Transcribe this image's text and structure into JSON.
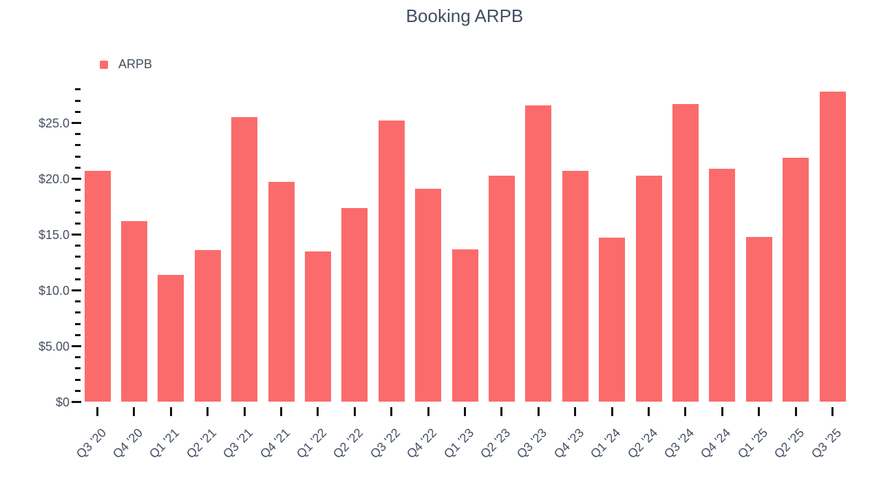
{
  "title": "Booking ARPB",
  "legend": {
    "items": [
      {
        "label": "ARPB",
        "color": "#fc6b6b"
      }
    ]
  },
  "chart_data": {
    "type": "bar",
    "title": "Booking ARPB",
    "xlabel": "",
    "ylabel": "",
    "categories": [
      "Q3 '20",
      "Q4 '20",
      "Q1 '21",
      "Q2 '21",
      "Q3 '21",
      "Q4 '21",
      "Q1 '22",
      "Q2 '22",
      "Q3 '22",
      "Q4 '22",
      "Q1 '23",
      "Q2 '23",
      "Q3 '23",
      "Q4 '23",
      "Q1 '24",
      "Q2 '24",
      "Q3 '24",
      "Q4 '24",
      "Q1 '25",
      "Q2 '25",
      "Q3 '25"
    ],
    "series": [
      {
        "name": "ARPB",
        "color": "#fc6b6b",
        "values": [
          20.7,
          16.2,
          11.4,
          13.6,
          25.5,
          19.7,
          13.5,
          17.4,
          25.2,
          19.1,
          13.7,
          20.3,
          26.6,
          20.7,
          14.7,
          20.3,
          26.7,
          20.9,
          14.8,
          21.9,
          27.8
        ]
      }
    ],
    "ylim": [
      0,
      28
    ],
    "y_minor_step": 1,
    "y_major_step": 5,
    "y_major_ticks": [
      {
        "value": 0,
        "label": "$0"
      },
      {
        "value": 5,
        "label": "$5.00"
      },
      {
        "value": 10,
        "label": "$10.0"
      },
      {
        "value": 15,
        "label": "$15.0"
      },
      {
        "value": 20,
        "label": "$20.0"
      },
      {
        "value": 25,
        "label": "$25.0"
      }
    ],
    "grid": false,
    "legend_position": "top-left",
    "colors": {
      "bar": "#fc6b6b",
      "text": "#454f62",
      "tick": "#111111",
      "background": "#ffffff"
    }
  }
}
